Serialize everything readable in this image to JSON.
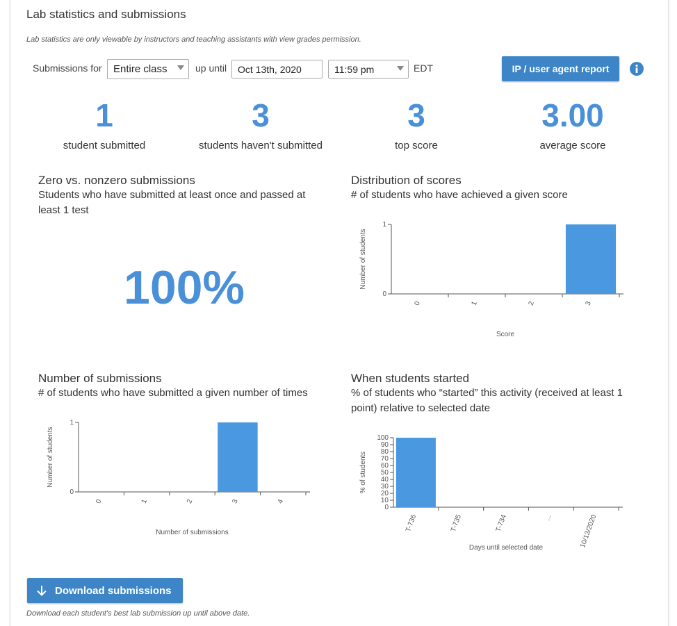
{
  "header": {
    "title": "Lab statistics and submissions",
    "note": "Lab statistics are only viewable by instructors and teaching assistants with view grades permission."
  },
  "controls": {
    "submissions_for": "Submissions for",
    "group": "Entire class",
    "up_until": "up until",
    "date": "Oct 13th, 2020",
    "time": "11:59 pm",
    "timezone": "EDT",
    "report_button": "IP / user agent report"
  },
  "stats": [
    {
      "value": "1",
      "label": "student submitted"
    },
    {
      "value": "3",
      "label": "students haven't submitted"
    },
    {
      "value": "3",
      "label": "top score"
    },
    {
      "value": "3.00",
      "label": "average score"
    }
  ],
  "zero_nonzero": {
    "title": "Zero vs. nonzero submissions",
    "subtitle": "Students who have submitted at least once and passed at least 1 test",
    "value": "100%"
  },
  "chart_data": [
    {
      "type": "bar",
      "title": "Distribution of scores",
      "subtitle": "# of students who have achieved a given score",
      "categories": [
        "0",
        "1",
        "2",
        "3"
      ],
      "values": [
        0,
        0,
        0,
        1
      ],
      "color": "#4a98e0",
      "ylim": [
        0,
        1
      ],
      "yticks": [
        0,
        1
      ],
      "x_label": "Score",
      "y_label": "Number of students"
    },
    {
      "type": "bar",
      "title": "Number of submissions",
      "subtitle": "# of students who have submitted a given number of times",
      "categories": [
        "0",
        "1",
        "2",
        "3",
        "4"
      ],
      "values": [
        0,
        0,
        0,
        1,
        0
      ],
      "color": "#4a98e0",
      "ylim": [
        0,
        1
      ],
      "yticks": [
        0,
        1
      ],
      "x_label": "Number of submissions",
      "y_label": "Number of students"
    },
    {
      "type": "bar",
      "title": "When students started",
      "subtitle": "% of students who “started” this activity (received at least 1 point) relative to selected date",
      "categories": [
        "T-736",
        "T-735",
        "T-734",
        "...",
        "10/13/2020"
      ],
      "values": [
        100,
        0,
        0,
        0,
        0
      ],
      "color": "#4a98e0",
      "ylim": [
        0,
        100
      ],
      "yticks": [
        0,
        10,
        20,
        30,
        40,
        50,
        60,
        70,
        80,
        90,
        100
      ],
      "x_label": "Days until selected date",
      "y_label": "% of students"
    }
  ],
  "footer": {
    "download_button": "Download submissions",
    "note": "Download each student's best lab submission up until above date."
  }
}
